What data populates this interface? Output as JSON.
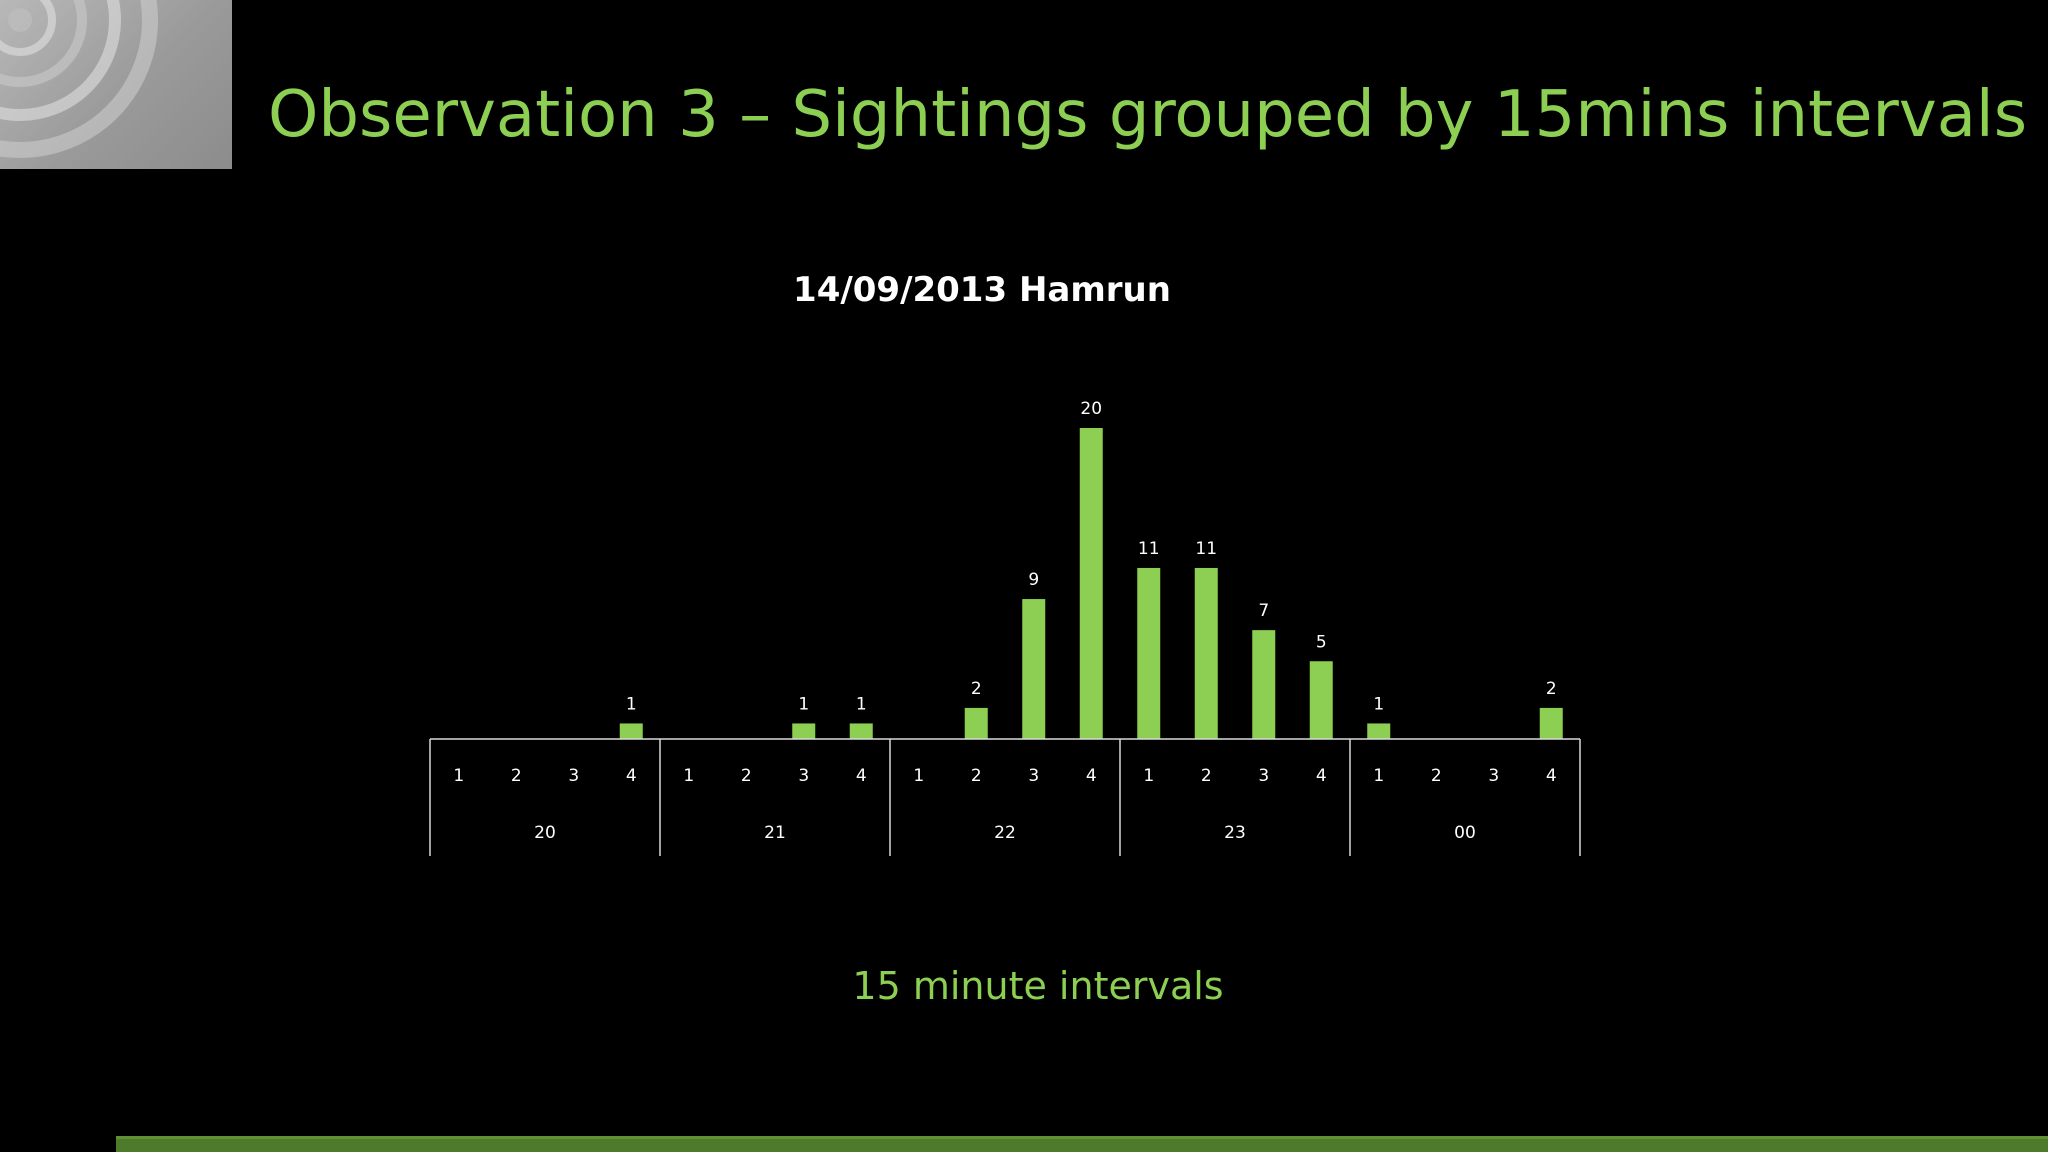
{
  "slide": {
    "title": "Observation 3 – Sightings grouped by 15mins intervals",
    "accent_color": "#8ccf52",
    "footer_color": "#4e7a2c"
  },
  "chart_data": {
    "type": "bar",
    "title": "14/09/2013 Hamrun",
    "xlabel": "15 minute intervals",
    "ylabel": "",
    "ylim": [
      0,
      20
    ],
    "grid": false,
    "legend": "none",
    "bar_color": "#8ccf52",
    "groups": [
      {
        "label": "20",
        "quarters": [
          "1",
          "2",
          "3",
          "4"
        ],
        "values": [
          0,
          0,
          0,
          1
        ]
      },
      {
        "label": "21",
        "quarters": [
          "1",
          "2",
          "3",
          "4"
        ],
        "values": [
          0,
          0,
          1,
          1
        ]
      },
      {
        "label": "22",
        "quarters": [
          "1",
          "2",
          "3",
          "4"
        ],
        "values": [
          0,
          2,
          9,
          20
        ]
      },
      {
        "label": "23",
        "quarters": [
          "1",
          "2",
          "3",
          "4"
        ],
        "values": [
          11,
          11,
          7,
          5
        ]
      },
      {
        "label": "00",
        "quarters": [
          "1",
          "2",
          "3",
          "4"
        ],
        "values": [
          1,
          0,
          0,
          2
        ]
      }
    ]
  }
}
